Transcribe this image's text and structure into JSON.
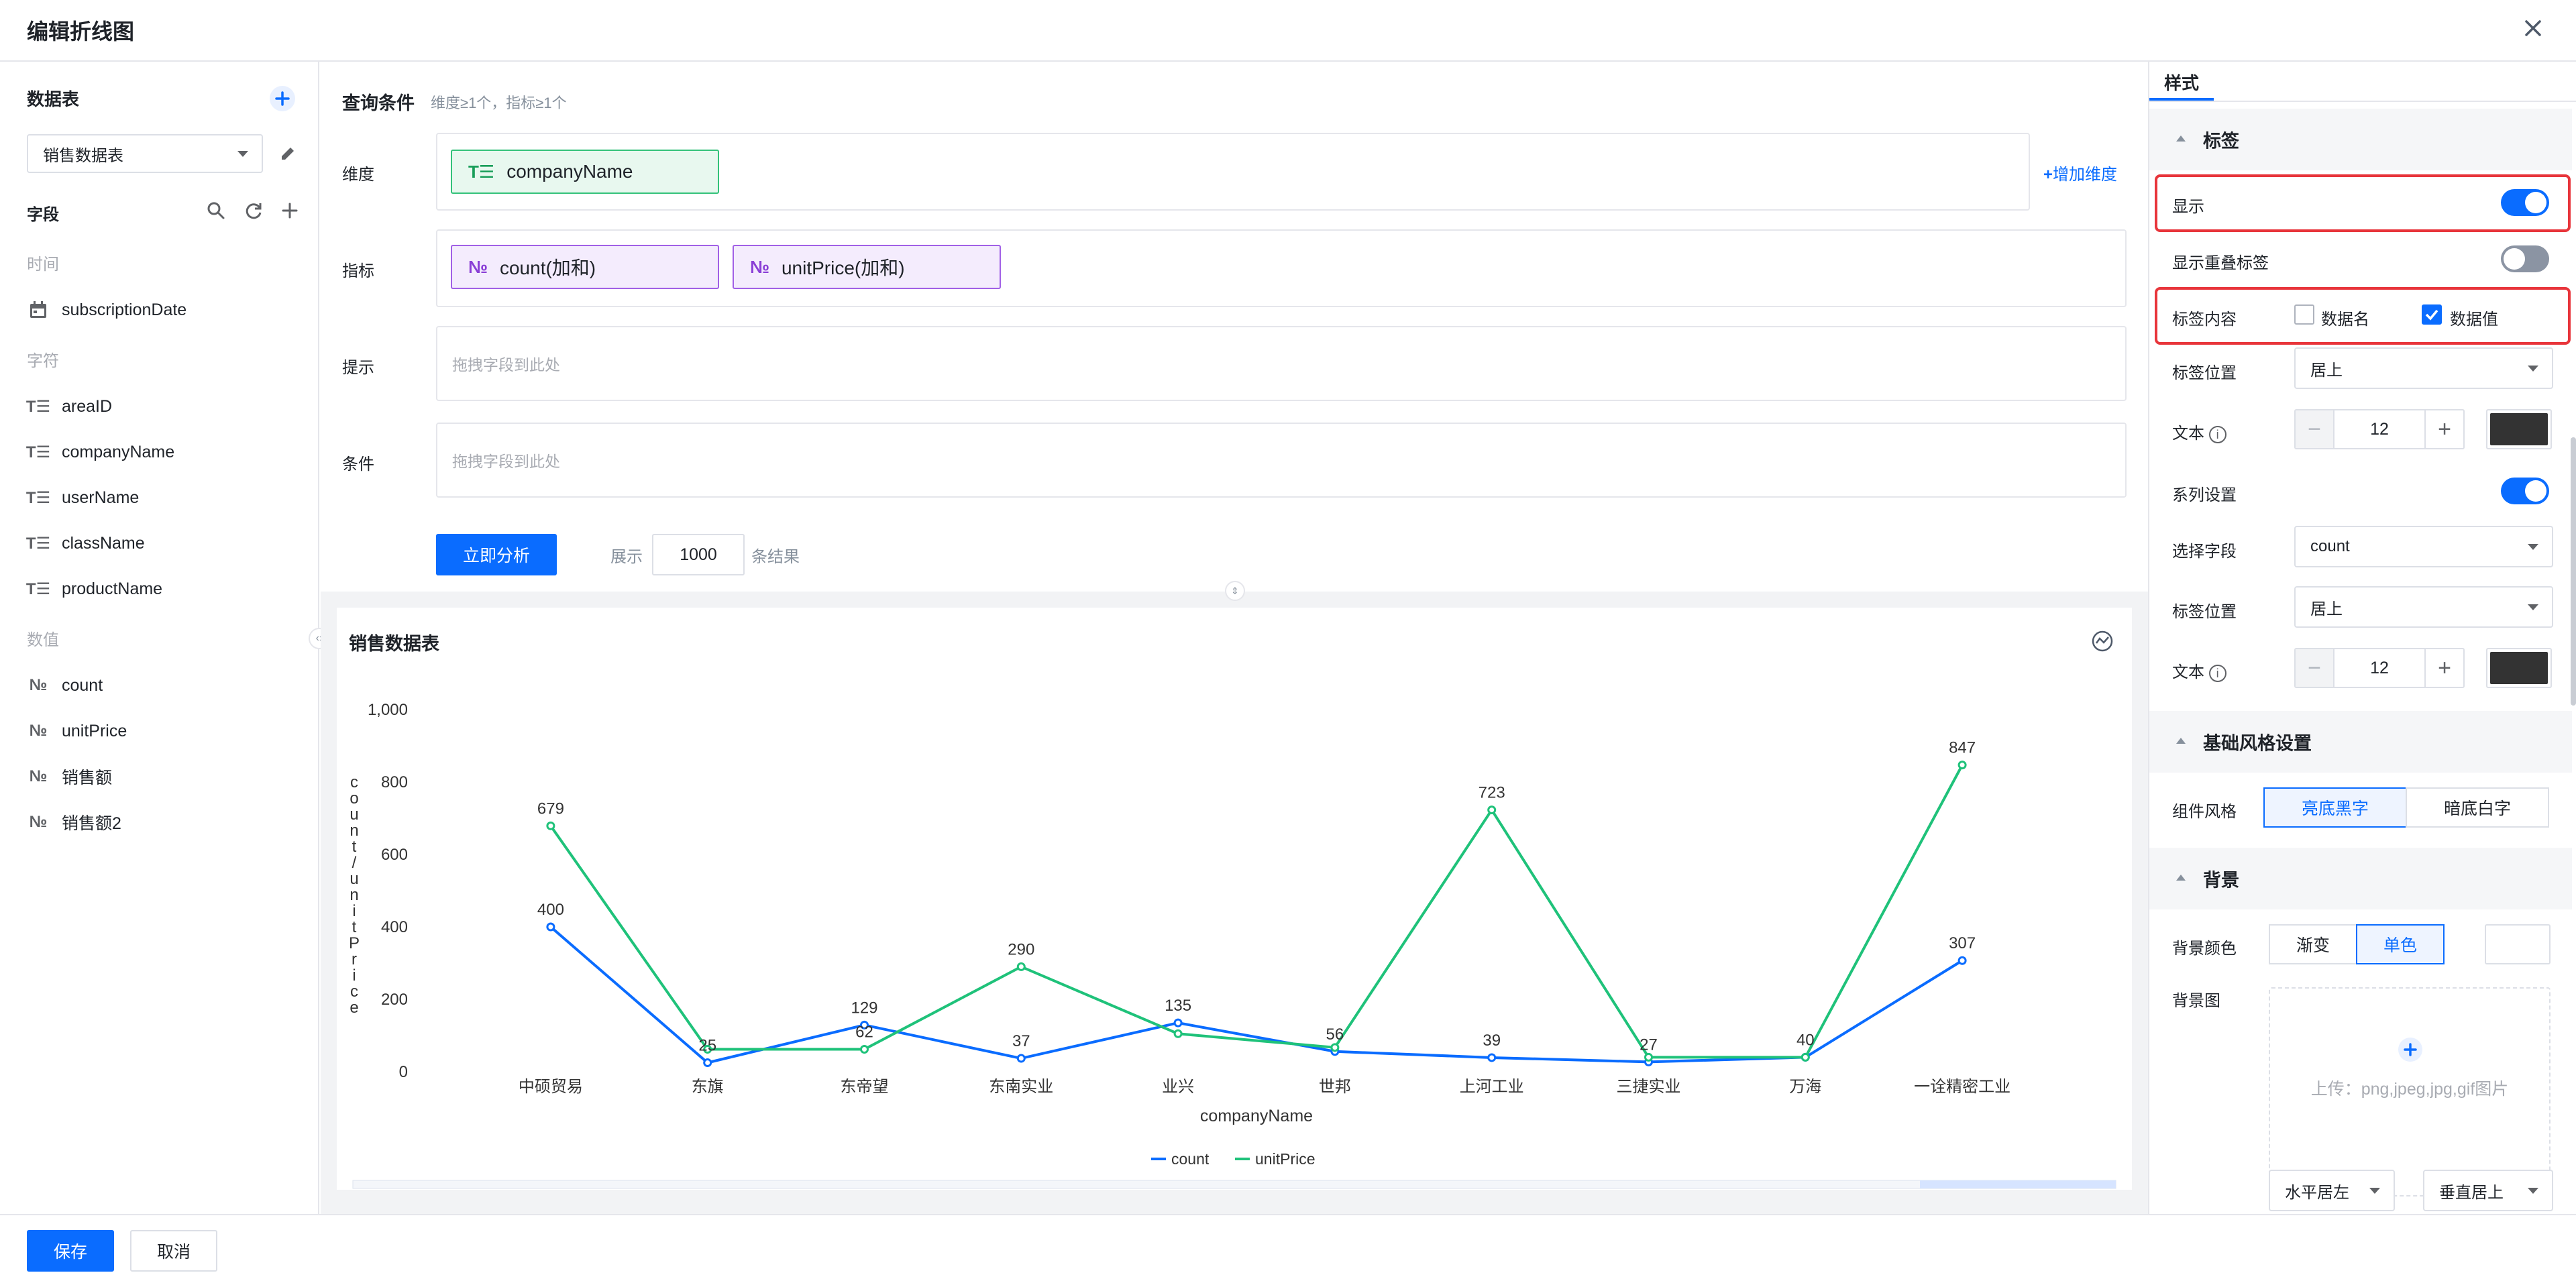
{
  "dialog": {
    "title": "编辑折线图"
  },
  "left": {
    "datatable_title": "数据表",
    "datatable_selected": "销售数据表",
    "fields_title": "字段",
    "groups": [
      {
        "label": "时间",
        "fields": [
          {
            "name": "subscriptionDate",
            "icon": "calendar-icon"
          }
        ]
      },
      {
        "label": "字符",
        "fields": [
          {
            "name": "areaID",
            "icon": "text-field-icon"
          },
          {
            "name": "companyName",
            "icon": "text-field-icon"
          },
          {
            "name": "userName",
            "icon": "text-field-icon"
          },
          {
            "name": "className",
            "icon": "text-field-icon"
          },
          {
            "name": "productName",
            "icon": "text-field-icon"
          }
        ]
      },
      {
        "label": "数值",
        "fields": [
          {
            "name": "count",
            "icon": "number-field-icon"
          },
          {
            "name": "unitPrice",
            "icon": "number-field-icon"
          },
          {
            "name": "销售额",
            "icon": "number-field-icon"
          },
          {
            "name": "销售额2",
            "icon": "number-field-icon"
          }
        ]
      }
    ]
  },
  "query": {
    "title": "查询条件",
    "hint": "维度≥1个，指标≥1个",
    "dimension_label": "维度",
    "dimension_chip": "companyName",
    "add_dimension": "增加维度",
    "measure_label": "指标",
    "measure_chips": [
      "count(加和)",
      "unitPrice(加和)"
    ],
    "tooltip_label": "提示",
    "condition_label": "条件",
    "drop_placeholder": "拖拽字段到此处",
    "analyze_button": "立即分析",
    "show_label": "展示",
    "show_count": "1000",
    "result_suffix": "条结果"
  },
  "chart_card": {
    "title": "销售数据表"
  },
  "chart_data": {
    "type": "line",
    "categories": [
      "中硕贸易",
      "东旗",
      "东帝望",
      "东南实业",
      "业兴",
      "世邦",
      "上河工业",
      "三捷实业",
      "万海",
      "一诠精密工业"
    ],
    "series": [
      {
        "name": "count",
        "color": "#0a6cff",
        "values": [
          400,
          25,
          129,
          37,
          135,
          56,
          39,
          27,
          40,
          307
        ]
      },
      {
        "name": "unitPrice",
        "color": "#1fc27a",
        "values": [
          679,
          62,
          62,
          290,
          105,
          67,
          723,
          40,
          40,
          847
        ]
      }
    ],
    "data_labels": [
      {
        "category": "中硕贸易",
        "values": [
          "400",
          "679"
        ]
      },
      {
        "category": "东旗",
        "values": [
          "25",
          ""
        ]
      },
      {
        "category": "东帝望",
        "values": [
          "129",
          "62"
        ]
      },
      {
        "category": "东南实业",
        "values": [
          "37",
          "290"
        ]
      },
      {
        "category": "业兴",
        "values": [
          "135",
          ""
        ]
      },
      {
        "category": "世邦",
        "values": [
          "56",
          ""
        ]
      },
      {
        "category": "上河工业",
        "values": [
          "39",
          "723"
        ]
      },
      {
        "category": "三捷实业",
        "values": [
          "27",
          ""
        ]
      },
      {
        "category": "万海",
        "values": [
          "40",
          ""
        ]
      },
      {
        "category": "一诠精密工业",
        "values": [
          "307",
          "847"
        ]
      }
    ],
    "xlabel": "companyName",
    "ylabel": "count/unitPrice",
    "ylim": [
      0,
      1000
    ],
    "yticks": [
      "0",
      "200",
      "400",
      "600",
      "800",
      "1,000"
    ],
    "legend": "bottom-center"
  },
  "style": {
    "tab": "样式",
    "label_section": "标签",
    "show": "显示",
    "show_overlap": "显示重叠标签",
    "label_content": "标签内容",
    "opt_name": "数据名",
    "opt_value": "数据值",
    "label_position": "标签位置",
    "label_position_value": "居上",
    "text": "文本",
    "font_size": "12",
    "series_settings": "系列设置",
    "select_field": "选择字段",
    "select_field_value": "count",
    "label_position2_value": "居上",
    "font_size2": "12",
    "text_color": "#333333",
    "base_style_section": "基础风格设置",
    "component_style": "组件风格",
    "style_light": "亮底黑字",
    "style_dark": "暗底白字",
    "bg_section": "背景",
    "bg_color": "背景颜色",
    "bg_gradient": "渐变",
    "bg_solid": "单色",
    "bg_image": "背景图",
    "upload_hint": "上传：png,jpeg,jpg,gif图片",
    "h_align": "水平居左",
    "v_align": "垂直居上"
  },
  "footer": {
    "save": "保存",
    "cancel": "取消"
  }
}
